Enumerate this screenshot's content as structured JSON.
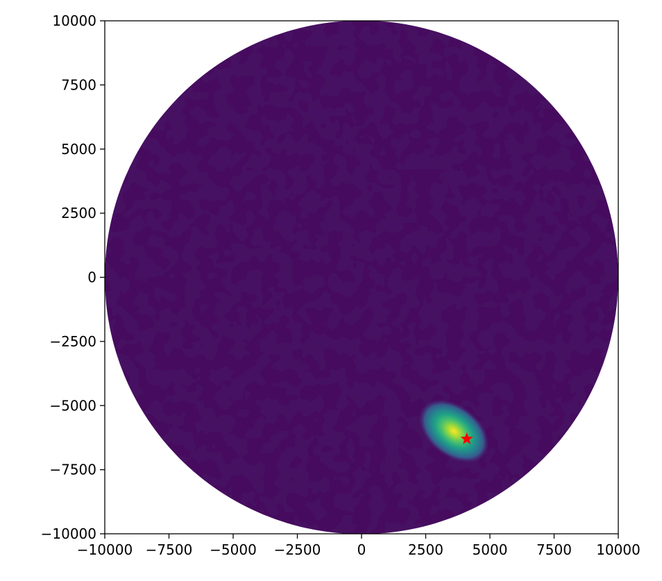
{
  "chart_data": {
    "type": "heatmap",
    "title": "",
    "xlabel": "",
    "ylabel": "",
    "xlim": [
      -10000,
      10000
    ],
    "ylim": [
      -10000,
      10000
    ],
    "x_ticks": [
      -10000,
      -7500,
      -5000,
      -2500,
      0,
      2500,
      5000,
      7500,
      10000
    ],
    "y_ticks": [
      -10000,
      -7500,
      -5000,
      -2500,
      0,
      2500,
      5000,
      7500,
      10000
    ],
    "x_tick_labels": [
      "−10000",
      "−7500",
      "−5000",
      "−2500",
      "0",
      "2500",
      "5000",
      "7500",
      "10000"
    ],
    "y_tick_labels": [
      "−10000",
      "−7500",
      "−5000",
      "−2500",
      "0",
      "2500",
      "5000",
      "7500",
      "10000"
    ],
    "grid": false,
    "domain_shape": "circle",
    "domain_radius": 10000,
    "colormap": "viridis",
    "background_color": "#460b5e",
    "hotspot": {
      "x": 3600,
      "y": -6000,
      "sigma_x": 700,
      "sigma_y": 450,
      "angle_deg": -38
    },
    "marker": {
      "x": 4100,
      "y": -6300,
      "symbol": "star",
      "color": "#ff0000"
    }
  }
}
